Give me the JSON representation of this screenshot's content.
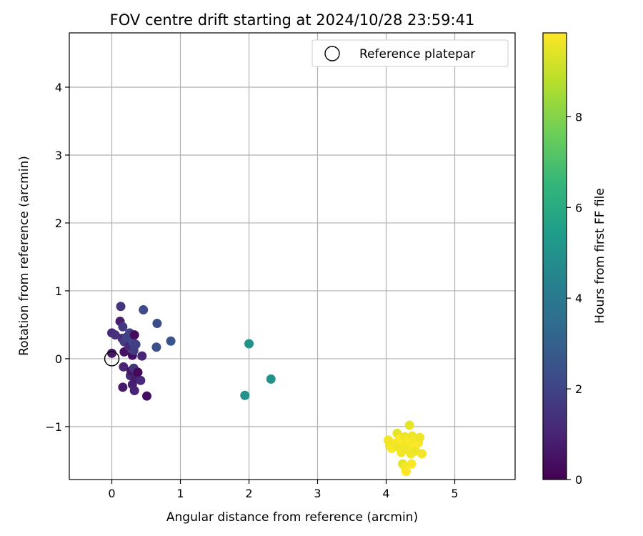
{
  "chart_data": {
    "type": "scatter",
    "title": "FOV centre drift starting at 2024/10/28 23:59:41",
    "xlabel": "Angular distance from reference (arcmin)",
    "ylabel": "Rotation from reference (arcmin)",
    "xlim": [
      -0.62,
      5.88
    ],
    "ylim": [
      -1.78,
      4.8
    ],
    "xticks": [
      0,
      1,
      2,
      3,
      4,
      5
    ],
    "xtick_labels": [
      "0",
      "1",
      "2",
      "3",
      "4",
      "5"
    ],
    "yticks": [
      -1,
      0,
      1,
      2,
      3,
      4
    ],
    "ytick_labels": [
      "−1",
      "0",
      "1",
      "2",
      "3",
      "4"
    ],
    "grid": true,
    "legend": {
      "position": "top-right",
      "entries": [
        {
          "label": "Reference platepar",
          "marker": "open-circle"
        }
      ]
    },
    "reference_point": {
      "x": 0.0,
      "y": 0.0
    },
    "colorbar": {
      "label": "Hours from first FF file",
      "colormap": "viridis",
      "range": [
        0,
        9.85
      ],
      "ticks": [
        0,
        2,
        4,
        6,
        8
      ],
      "tick_labels": [
        "0",
        "2",
        "4",
        "6",
        "8"
      ],
      "stops": [
        "#440154",
        "#482878",
        "#3e4a89",
        "#31688e",
        "#26828e",
        "#1f9e89",
        "#35b779",
        "#6ece58",
        "#b5de2b",
        "#fde725"
      ]
    },
    "points": [
      {
        "x": 0.0,
        "y": 0.38,
        "hours": 1.2
      },
      {
        "x": 0.0,
        "y": 0.08,
        "hours": 0.6
      },
      {
        "x": 0.05,
        "y": 0.35,
        "hours": 1.4
      },
      {
        "x": 0.12,
        "y": 0.55,
        "hours": 0.8
      },
      {
        "x": 0.13,
        "y": 0.77,
        "hours": 1.5
      },
      {
        "x": 0.15,
        "y": 0.3,
        "hours": 1.3
      },
      {
        "x": 0.16,
        "y": 0.47,
        "hours": 1.6
      },
      {
        "x": 0.18,
        "y": 0.25,
        "hours": 1.8
      },
      {
        "x": 0.18,
        "y": 0.1,
        "hours": 0.5
      },
      {
        "x": 0.17,
        "y": -0.12,
        "hours": 1.0
      },
      {
        "x": 0.16,
        "y": -0.42,
        "hours": 0.7
      },
      {
        "x": 0.22,
        "y": 0.32,
        "hours": 2.0
      },
      {
        "x": 0.25,
        "y": 0.18,
        "hours": 1.1
      },
      {
        "x": 0.26,
        "y": 0.38,
        "hours": 1.9
      },
      {
        "x": 0.27,
        "y": -0.25,
        "hours": 1.3
      },
      {
        "x": 0.28,
        "y": -0.18,
        "hours": 0.6
      },
      {
        "x": 0.3,
        "y": 0.05,
        "hours": 0.4
      },
      {
        "x": 0.31,
        "y": 0.24,
        "hours": 2.1
      },
      {
        "x": 0.32,
        "y": 0.12,
        "hours": 1.7
      },
      {
        "x": 0.33,
        "y": 0.35,
        "hours": 0.3
      },
      {
        "x": 0.3,
        "y": -0.38,
        "hours": 0.9
      },
      {
        "x": 0.33,
        "y": -0.47,
        "hours": 1.0
      },
      {
        "x": 0.34,
        "y": -0.28,
        "hours": 0.8
      },
      {
        "x": 0.32,
        "y": -0.14,
        "hours": 1.5
      },
      {
        "x": 0.35,
        "y": 0.21,
        "hours": 1.8
      },
      {
        "x": 0.38,
        "y": -0.2,
        "hours": 0.2
      },
      {
        "x": 0.42,
        "y": -0.32,
        "hours": 1.2
      },
      {
        "x": 0.44,
        "y": 0.04,
        "hours": 1.0
      },
      {
        "x": 0.46,
        "y": 0.72,
        "hours": 2.2
      },
      {
        "x": 0.51,
        "y": -0.55,
        "hours": 0.4
      },
      {
        "x": 0.65,
        "y": 0.17,
        "hours": 2.4
      },
      {
        "x": 0.66,
        "y": 0.52,
        "hours": 2.3
      },
      {
        "x": 0.86,
        "y": 0.26,
        "hours": 2.5
      },
      {
        "x": 1.94,
        "y": -0.54,
        "hours": 5.0
      },
      {
        "x": 2.0,
        "y": 0.22,
        "hours": 5.0
      },
      {
        "x": 2.32,
        "y": -0.3,
        "hours": 5.0
      },
      {
        "x": 4.03,
        "y": -1.2,
        "hours": 9.7
      },
      {
        "x": 4.05,
        "y": -1.28,
        "hours": 9.6
      },
      {
        "x": 4.08,
        "y": -1.32,
        "hours": 9.8
      },
      {
        "x": 4.12,
        "y": -1.25,
        "hours": 9.7
      },
      {
        "x": 4.16,
        "y": -1.1,
        "hours": 9.5
      },
      {
        "x": 4.18,
        "y": -1.3,
        "hours": 9.6
      },
      {
        "x": 4.2,
        "y": -1.18,
        "hours": 9.8
      },
      {
        "x": 4.22,
        "y": -1.38,
        "hours": 9.7
      },
      {
        "x": 4.24,
        "y": -1.55,
        "hours": 9.5
      },
      {
        "x": 4.25,
        "y": -1.22,
        "hours": 9.8
      },
      {
        "x": 4.27,
        "y": -1.15,
        "hours": 9.6
      },
      {
        "x": 4.28,
        "y": -1.6,
        "hours": 9.7
      },
      {
        "x": 4.29,
        "y": -1.66,
        "hours": 9.8
      },
      {
        "x": 4.3,
        "y": -1.33,
        "hours": 9.6
      },
      {
        "x": 4.31,
        "y": -1.26,
        "hours": 9.7
      },
      {
        "x": 4.33,
        "y": -1.2,
        "hours": 9.8
      },
      {
        "x": 4.34,
        "y": -0.98,
        "hours": 9.5
      },
      {
        "x": 4.36,
        "y": -1.4,
        "hours": 9.7
      },
      {
        "x": 4.37,
        "y": -1.55,
        "hours": 9.8
      },
      {
        "x": 4.38,
        "y": -1.14,
        "hours": 9.6
      },
      {
        "x": 4.4,
        "y": -1.22,
        "hours": 9.7
      },
      {
        "x": 4.41,
        "y": -1.3,
        "hours": 9.8
      },
      {
        "x": 4.43,
        "y": -1.36,
        "hours": 9.6
      },
      {
        "x": 4.45,
        "y": -1.18,
        "hours": 9.7
      },
      {
        "x": 4.47,
        "y": -1.24,
        "hours": 9.8
      },
      {
        "x": 4.49,
        "y": -1.16,
        "hours": 9.6
      },
      {
        "x": 4.52,
        "y": -1.4,
        "hours": 9.7
      }
    ]
  }
}
